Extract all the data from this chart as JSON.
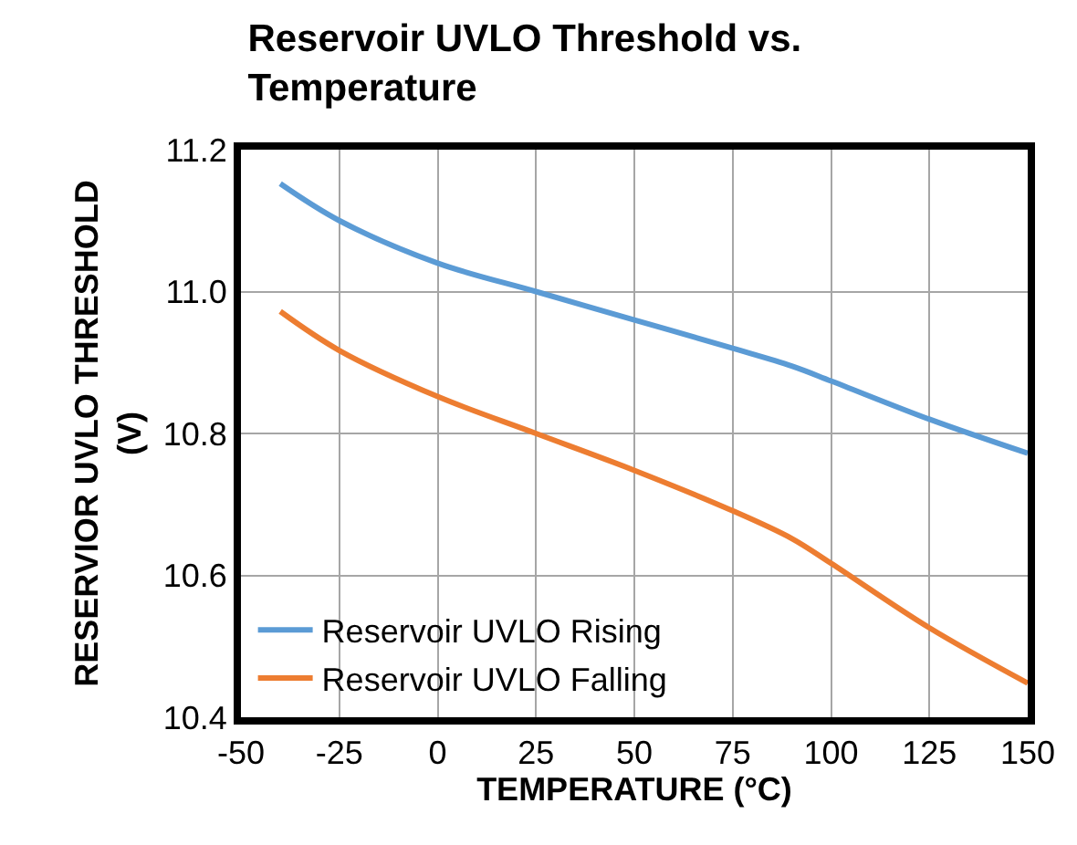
{
  "chart_data": {
    "type": "line",
    "title": "Reservoir UVLO Threshold vs.\nTemperature",
    "xlabel": "TEMPERATURE (°C)",
    "ylabel": "RESERVIOR UVLO THRESHOLD\n(V)",
    "x": [
      -40,
      -25,
      0,
      25,
      50,
      75,
      90,
      100,
      125,
      150
    ],
    "series": [
      {
        "name": "Reservoir UVLO Rising",
        "color": "#5b9bd5",
        "values": [
          11.152,
          11.1,
          11.04,
          11.0,
          10.96,
          10.92,
          10.895,
          10.874,
          10.82,
          10.772
        ]
      },
      {
        "name": "Reservoir UVLO Falling",
        "color": "#ed7d31",
        "values": [
          10.972,
          10.917,
          10.852,
          10.8,
          10.748,
          10.691,
          10.652,
          10.617,
          10.526,
          10.448
        ]
      }
    ],
    "xlim": [
      -50,
      150
    ],
    "xticks": [
      -50,
      -25,
      0,
      25,
      50,
      75,
      100,
      125,
      150
    ],
    "ylim": [
      10.4,
      11.2
    ],
    "yticks": [
      {
        "value": 10.4,
        "label": "10.4"
      },
      {
        "value": 10.6,
        "label": "10.6"
      },
      {
        "value": 10.8,
        "label": "10.8"
      },
      {
        "value": 11.0,
        "label": "11.0"
      },
      {
        "value": 11.2,
        "label": "11.2"
      }
    ],
    "grid": true,
    "legend": "bottom left",
    "marker": "none",
    "line_style": "solid"
  }
}
